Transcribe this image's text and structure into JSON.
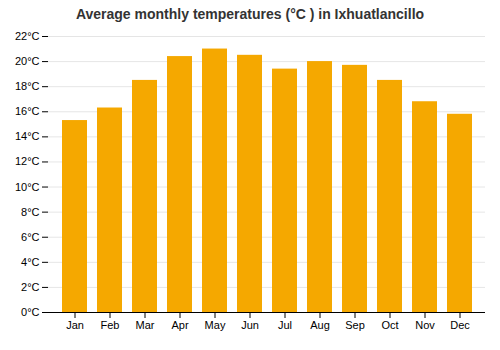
{
  "chart_data": {
    "type": "bar",
    "title": "Average monthly temperatures (°C ) in Ixhuatlancillo",
    "categories": [
      "Jan",
      "Feb",
      "Mar",
      "Apr",
      "May",
      "Jun",
      "Jul",
      "Aug",
      "Sep",
      "Oct",
      "Nov",
      "Dec"
    ],
    "values": [
      15.3,
      16.3,
      18.5,
      20.4,
      21.0,
      20.5,
      19.4,
      20.0,
      19.7,
      18.5,
      16.8,
      15.8
    ],
    "color": "#F5A800",
    "ylim": [
      0,
      22
    ],
    "yticks": [
      {
        "value": 0,
        "label": "0°C"
      },
      {
        "value": 2,
        "label": "2°C"
      },
      {
        "value": 4,
        "label": "4°C"
      },
      {
        "value": 6,
        "label": "6°C"
      },
      {
        "value": 8,
        "label": "8°C"
      },
      {
        "value": 10,
        "label": "10°C"
      },
      {
        "value": 12,
        "label": "12°C"
      },
      {
        "value": 14,
        "label": "14°C"
      },
      {
        "value": 16,
        "label": "16°C"
      },
      {
        "value": 18,
        "label": "18°C"
      },
      {
        "value": 20,
        "label": "20°C"
      },
      {
        "value": 22,
        "label": "22°C"
      }
    ],
    "grid": true
  }
}
